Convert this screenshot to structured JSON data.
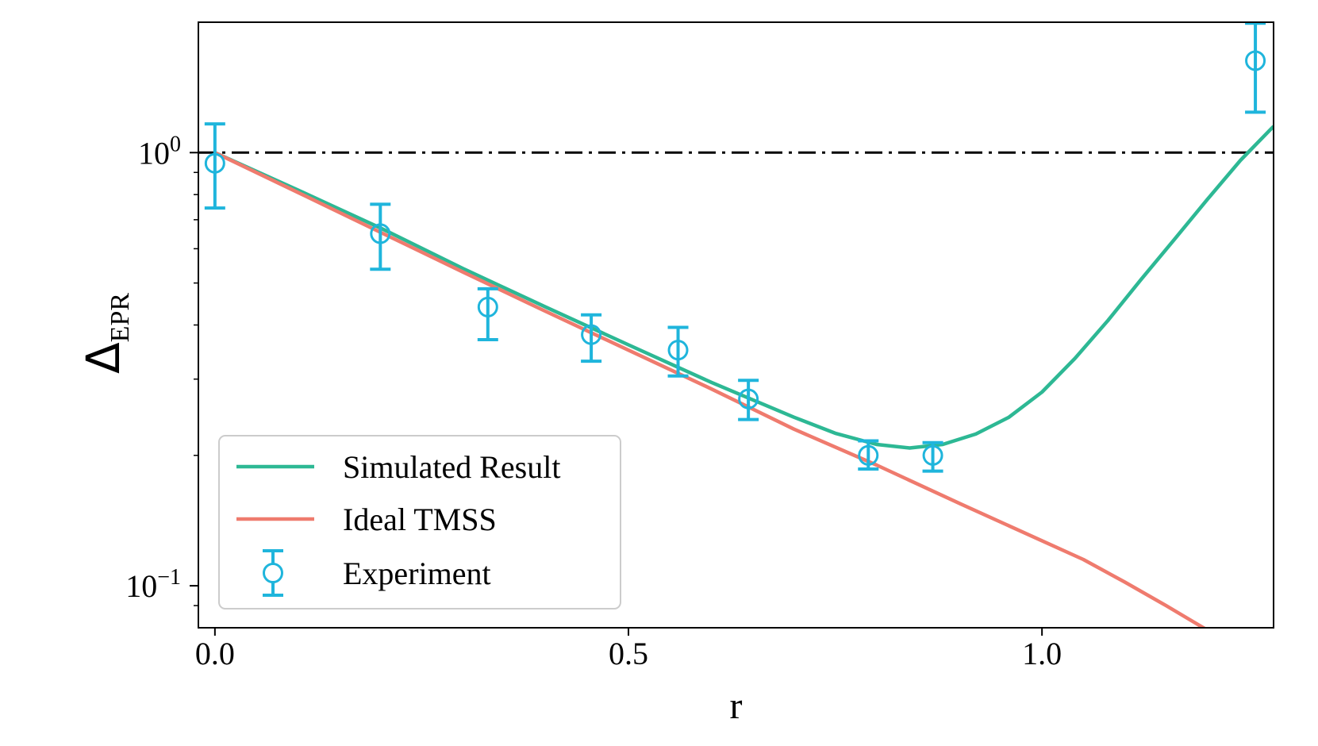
{
  "chart_data": {
    "type": "line",
    "title": "",
    "xlabel": "r",
    "ylabel": {
      "main": "Δ",
      "subscript": "EPR"
    },
    "xlim": [
      -0.02,
      1.28
    ],
    "ylim": [
      0.08,
      2.0
    ],
    "yscale": "log",
    "grid": false,
    "legend_position": "bottom-left",
    "x_ticks": [
      {
        "value": 0.0,
        "label": "0.0"
      },
      {
        "value": 0.5,
        "label": "0.5"
      },
      {
        "value": 1.0,
        "label": "1.0"
      }
    ],
    "y_ticks": [
      {
        "value": 1.0,
        "base": "10",
        "exponent": "0"
      },
      {
        "value": 0.1,
        "base": "10",
        "exponent": "−1"
      }
    ],
    "reference_line": {
      "y": 1.0,
      "style": "dash-dot",
      "color": "#000000"
    },
    "series": [
      {
        "name": "Simulated Result",
        "kind": "line",
        "color": "#2db894",
        "x": [
          0.0,
          0.1,
          0.2,
          0.3,
          0.4,
          0.5,
          0.6,
          0.7,
          0.75,
          0.8,
          0.84,
          0.88,
          0.92,
          0.96,
          1.0,
          1.04,
          1.08,
          1.12,
          1.16,
          1.2,
          1.24,
          1.28
        ],
        "y": [
          1.0,
          0.82,
          0.67,
          0.54,
          0.44,
          0.36,
          0.295,
          0.245,
          0.225,
          0.212,
          0.208,
          0.212,
          0.224,
          0.245,
          0.28,
          0.335,
          0.41,
          0.51,
          0.63,
          0.78,
          0.96,
          1.15
        ]
      },
      {
        "name": "Ideal TMSS",
        "kind": "line",
        "color": "#ef7b6e",
        "x": [
          0.0,
          0.1,
          0.2,
          0.3,
          0.4,
          0.5,
          0.6,
          0.7,
          0.8,
          0.9,
          1.0,
          1.05,
          1.1,
          1.15,
          1.2
        ],
        "y": [
          1.0,
          0.81,
          0.655,
          0.53,
          0.43,
          0.35,
          0.285,
          0.23,
          0.19,
          0.155,
          0.127,
          0.115,
          0.102,
          0.09,
          0.079
        ]
      },
      {
        "name": "Experiment",
        "kind": "errorbar",
        "color": "#1fb5dc",
        "x": [
          0.0,
          0.2,
          0.33,
          0.455,
          0.56,
          0.645,
          0.79,
          0.868,
          1.258
        ],
        "y": [
          0.945,
          0.65,
          0.44,
          0.38,
          0.35,
          0.27,
          0.2,
          0.2,
          1.63
        ],
        "err_low": [
          0.2,
          0.112,
          0.07,
          0.05,
          0.045,
          0.028,
          0.014,
          0.016,
          0.39
        ],
        "err_high": [
          0.22,
          0.11,
          0.045,
          0.042,
          0.045,
          0.028,
          0.016,
          0.014,
          0.36
        ]
      }
    ]
  }
}
